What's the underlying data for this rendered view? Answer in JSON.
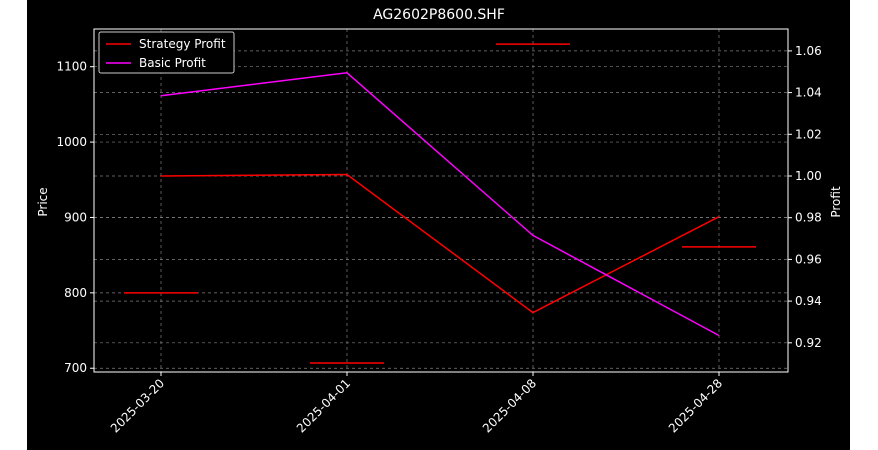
{
  "chart_data": {
    "type": "line",
    "title": "AG2602P8600.SHF",
    "xlabel": "",
    "ylabel": "Price",
    "ylabel_right": "Profit",
    "categories": [
      "2025-03-20",
      "2025-04-01",
      "2025-04-08",
      "2025-04-28"
    ],
    "price_bars": [
      {
        "category": "2025-03-20",
        "value": 800
      },
      {
        "category": "2025-04-01",
        "value": 707
      },
      {
        "category": "2025-04-08",
        "value": 1130
      },
      {
        "category": "2025-04-28",
        "value": 861
      }
    ],
    "series": [
      {
        "name": "Strategy Profit",
        "axis": "right",
        "color": "#ff0000",
        "values": [
          1.0,
          1.0007,
          0.9345,
          0.9805
        ]
      },
      {
        "name": "Basic Profit",
        "axis": "right",
        "color": "#ff00ff",
        "values": [
          1.0385,
          1.0495,
          0.9715,
          0.9235
        ]
      }
    ],
    "yticks_left": [
      700,
      800,
      900,
      1000,
      1100
    ],
    "yticks_right": [
      0.92,
      0.94,
      0.96,
      0.98,
      1.0,
      1.02,
      1.04,
      1.06
    ],
    "ytick_labels_right": [
      "0.92",
      "0.94",
      "0.96",
      "0.98",
      "1.00",
      "1.02",
      "1.04",
      "1.06"
    ],
    "ylim_left": [
      695,
      1150
    ],
    "ylim_right": [
      0.906,
      1.0705
    ],
    "grid": true,
    "legend_position": "top-left",
    "colors": {
      "background": "#000000",
      "text": "#ffffff",
      "grid": "#808080",
      "price_bar": "#ff0000"
    }
  }
}
